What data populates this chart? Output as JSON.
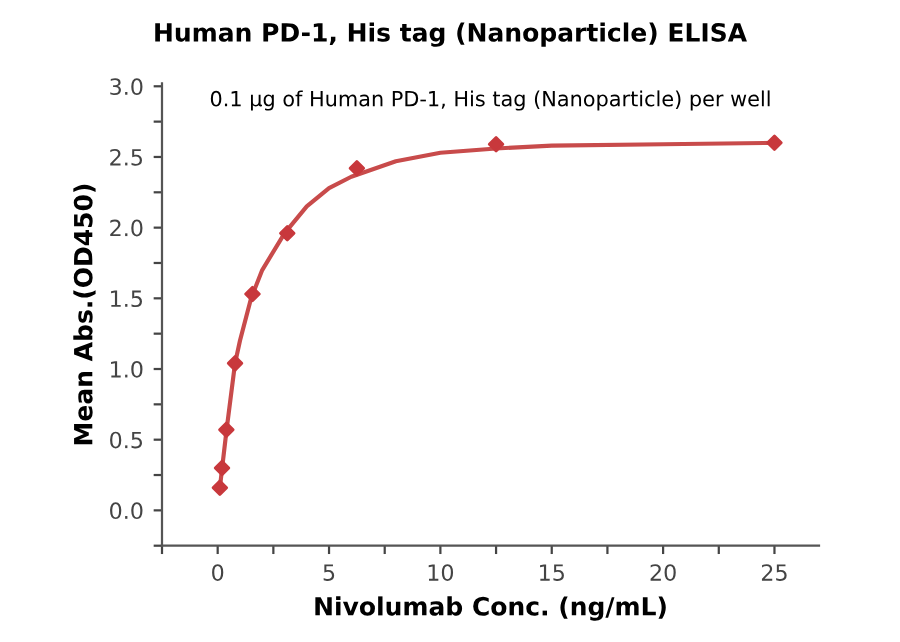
{
  "chart_data": {
    "type": "scatter",
    "title": "Human PD-1, His tag (Nanoparticle) ELISA",
    "subtitle": "0.1 µg of Human PD-1, His tag (Nanoparticle) per well",
    "xlabel": "Nivolumab Conc. (ng/mL)",
    "ylabel": "Mean Abs.(OD450)",
    "xlim": [
      -2.5,
      27
    ],
    "ylim": [
      -0.25,
      3.02
    ],
    "xticks": [
      {
        "value": -2.5,
        "label": null
      },
      0,
      {
        "value": 2.5,
        "label": null
      },
      5,
      {
        "value": 7.5,
        "label": null
      },
      10,
      {
        "value": 12.5,
        "label": null
      },
      15,
      {
        "value": 17.5,
        "label": null
      },
      20,
      {
        "value": 22.5,
        "label": null
      },
      25
    ],
    "yticks": [
      {
        "value": -0.25,
        "label": null
      },
      {
        "value": 0,
        "label": "0.0"
      },
      {
        "value": 0.25,
        "label": null
      },
      0.5,
      {
        "value": 0.75,
        "label": null
      },
      {
        "value": 1,
        "label": "1.0"
      },
      {
        "value": 1.25,
        "label": null
      },
      1.5,
      {
        "value": 1.75,
        "label": null
      },
      {
        "value": 2,
        "label": "2.0"
      },
      {
        "value": 2.25,
        "label": null
      },
      2.5,
      {
        "value": 2.75,
        "label": null
      },
      {
        "value": 3,
        "label": "3.0"
      }
    ],
    "grid": false,
    "legend": false,
    "series": [
      {
        "type": "line",
        "color": "#c84b4b",
        "marker": "none",
        "line_style": "solid",
        "x": [
          0.1,
          0.2,
          0.4,
          0.78,
          1.0,
          1.5,
          2,
          3,
          4,
          5,
          6,
          8,
          10,
          12.5,
          15,
          20,
          25
        ],
        "values": [
          0.16,
          0.3,
          0.57,
          1.04,
          1.2,
          1.5,
          1.7,
          1.96,
          2.15,
          2.28,
          2.36,
          2.47,
          2.53,
          2.56,
          2.58,
          2.59,
          2.6
        ]
      },
      {
        "color": "#c8383c",
        "marker": "diamond",
        "x": [
          0.098,
          0.195,
          0.39,
          0.78,
          1.5625,
          3.125,
          6.25,
          12.5,
          25
        ],
        "values": [
          0.16,
          0.3,
          0.57,
          1.04,
          1.53,
          1.96,
          2.42,
          2.59,
          2.6
        ]
      }
    ]
  }
}
